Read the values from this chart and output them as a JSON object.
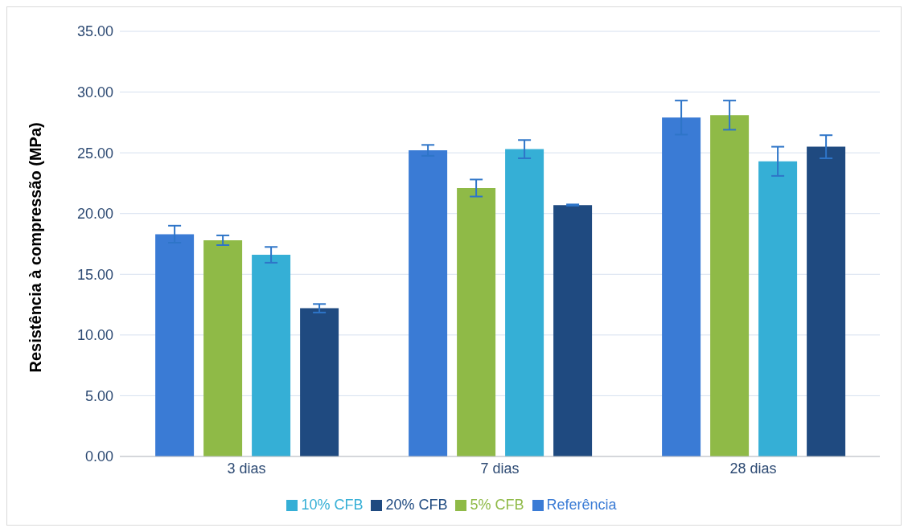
{
  "chart_data": {
    "type": "bar",
    "categories": [
      "3 dias",
      "7 dias",
      "28 dias"
    ],
    "ylabel": "Resistência à compressão (MPa)",
    "ylim": [
      0,
      35
    ],
    "yticks": [
      {
        "value": 0,
        "label": "0.00"
      },
      {
        "value": 5,
        "label": "5.00"
      },
      {
        "value": 10,
        "label": "10.00"
      },
      {
        "value": 15,
        "label": "15.00"
      },
      {
        "value": 20,
        "label": "20.00"
      },
      {
        "value": 25,
        "label": "25.00"
      },
      {
        "value": 30,
        "label": "30.00"
      },
      {
        "value": 35,
        "label": "35.00"
      }
    ],
    "grid": "y",
    "legend": "bottom",
    "series": [
      {
        "name": "Referência",
        "color": "#3a7bd5",
        "values": [
          18.3,
          25.2,
          27.9
        ],
        "errors": [
          0.7,
          0.45,
          1.4
        ]
      },
      {
        "name": "5% CFB",
        "color": "#8fba47",
        "values": [
          17.8,
          22.1,
          28.1
        ],
        "errors": [
          0.4,
          0.7,
          1.2
        ]
      },
      {
        "name": "10% CFB",
        "color": "#35afd6",
        "values": [
          16.6,
          25.3,
          24.3
        ],
        "errors": [
          0.65,
          0.75,
          1.2
        ]
      },
      {
        "name": "20% CFB",
        "color": "#1f4a80",
        "values": [
          12.2,
          20.7,
          25.5
        ],
        "errors": [
          0.35,
          0.05,
          0.95
        ]
      }
    ]
  }
}
